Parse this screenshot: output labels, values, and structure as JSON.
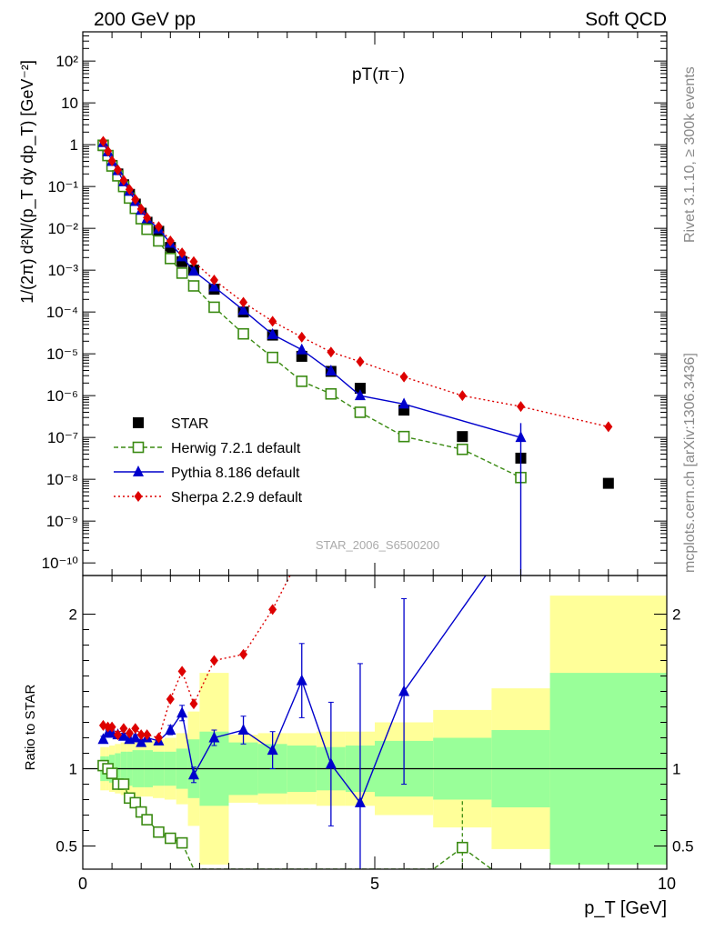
{
  "header": {
    "left": "200 GeV pp",
    "right": "Soft QCD"
  },
  "side_labels": {
    "rivet": "Rivet 3.1.10, ≥ 300k events",
    "mcplots": "mcplots.cern.ch [arXiv:1306.3436]"
  },
  "colors": {
    "star": "#000000",
    "herwig": "#3a8a12",
    "pythia": "#0000cc",
    "sherpa": "#dd0000",
    "band_yellow": "#ffff99",
    "band_green": "#99ff99"
  },
  "chart_data": [
    {
      "type": "scatter",
      "title": "pT(π⁻)",
      "analysis_label": "STAR_2006_S6500200",
      "ylabel": "1/(2π) d²N/(p_T dy dp_T) [GeV⁻²]",
      "ylog": true,
      "xlim": [
        0,
        10
      ],
      "ylim": [
        5e-11,
        500
      ],
      "y_tick_labels": [
        "10⁻¹⁰",
        "10⁻⁹",
        "10⁻⁸",
        "10⁻⁷",
        "10⁻⁶",
        "10⁻⁵",
        "10⁻⁴",
        "10⁻³",
        "10⁻²",
        "10⁻¹",
        "1",
        "10",
        "10²"
      ],
      "legend_position": "lower-left",
      "series": [
        {
          "name": "STAR",
          "style": "square-filled",
          "x": [
            0.35,
            0.43,
            0.5,
            0.6,
            0.7,
            0.8,
            0.9,
            1.0,
            1.1,
            1.3,
            1.5,
            1.7,
            1.9,
            2.25,
            2.75,
            3.25,
            3.75,
            4.25,
            4.75,
            5.5,
            6.5,
            7.5,
            9.0
          ],
          "y": [
            0.95,
            0.55,
            0.32,
            0.2,
            0.11,
            0.065,
            0.038,
            0.023,
            0.014,
            0.0085,
            0.0035,
            0.0016,
            0.001,
            0.00035,
            0.0001,
            2.8e-05,
            8.7e-06,
            3.8e-06,
            1.5e-06,
            4.5e-07,
            1.05e-07,
            3.2e-08,
            8e-09
          ]
        },
        {
          "name": "Herwig 7.2.1 default",
          "style": "square-open-dashed",
          "x": [
            0.35,
            0.43,
            0.5,
            0.6,
            0.7,
            0.8,
            0.9,
            1.0,
            1.1,
            1.3,
            1.5,
            1.7,
            1.9,
            2.25,
            2.75,
            3.25,
            3.75,
            4.25,
            4.75,
            5.5,
            6.5,
            7.5
          ],
          "y": [
            0.97,
            0.55,
            0.31,
            0.18,
            0.1,
            0.053,
            0.03,
            0.017,
            0.0095,
            0.005,
            0.0019,
            0.00085,
            0.00042,
            0.00013,
            3e-05,
            8.2e-06,
            2.2e-06,
            1.1e-06,
            4e-07,
            1.05e-07,
            5.2e-08,
            1.1e-08
          ]
        },
        {
          "name": "Pythia 8.186 default",
          "style": "triangle-solid",
          "x": [
            0.35,
            0.43,
            0.5,
            0.6,
            0.7,
            0.8,
            0.9,
            1.0,
            1.1,
            1.3,
            1.5,
            1.7,
            1.9,
            2.25,
            2.75,
            3.25,
            3.75,
            4.25,
            4.75,
            5.5,
            7.5
          ],
          "y": [
            1.13,
            0.68,
            0.4,
            0.24,
            0.13,
            0.077,
            0.044,
            0.027,
            0.017,
            0.0097,
            0.0044,
            0.0021,
            0.00095,
            0.0004,
            0.00011,
            2.9e-05,
            1.25e-05,
            3.9e-06,
            1e-06,
            6.3e-07,
            1e-07
          ]
        },
        {
          "name": "Sherpa 2.2.9 default",
          "style": "diamond-dotted",
          "x": [
            0.35,
            0.43,
            0.5,
            0.6,
            0.7,
            0.8,
            0.9,
            1.0,
            1.1,
            1.3,
            1.5,
            1.7,
            1.9,
            2.25,
            2.75,
            3.25,
            3.75,
            4.25,
            4.75,
            5.5,
            6.5,
            7.5,
            9.0
          ],
          "y": [
            1.2,
            0.7,
            0.41,
            0.25,
            0.14,
            0.085,
            0.049,
            0.029,
            0.018,
            0.011,
            0.005,
            0.0026,
            0.0016,
            0.00058,
            0.00017,
            6e-05,
            2.5e-05,
            1.1e-05,
            6.5e-06,
            2.8e-06,
            1e-06,
            5.5e-07,
            1.8e-07
          ]
        }
      ]
    },
    {
      "type": "line",
      "ylabel": "Ratio to STAR",
      "xlabel": "p_T [GeV]",
      "xlim": [
        0,
        10
      ],
      "ylim": [
        0.35,
        2.25
      ],
      "x_ticks": [
        0,
        5,
        10
      ],
      "y_ticks": [
        0.5,
        1,
        2
      ],
      "uncertainty_bands": {
        "x_edges": [
          0.3,
          0.4,
          0.45,
          0.55,
          0.65,
          0.75,
          0.85,
          0.95,
          1.05,
          1.2,
          1.4,
          1.6,
          1.8,
          2.0,
          2.5,
          3.0,
          3.5,
          4.0,
          4.5,
          5.0,
          6.0,
          7.0,
          8.0,
          10.0
        ],
        "green_lo": [
          0.92,
          0.92,
          0.91,
          0.9,
          0.89,
          0.89,
          0.88,
          0.88,
          0.88,
          0.89,
          0.89,
          0.87,
          0.81,
          0.76,
          0.83,
          0.84,
          0.85,
          0.86,
          0.85,
          0.82,
          0.8,
          0.75,
          0.38
        ],
        "green_hi": [
          1.08,
          1.08,
          1.09,
          1.1,
          1.11,
          1.11,
          1.12,
          1.12,
          1.12,
          1.11,
          1.11,
          1.13,
          1.19,
          1.24,
          1.17,
          1.16,
          1.15,
          1.14,
          1.15,
          1.18,
          1.2,
          1.25,
          1.62
        ],
        "yellow_lo": [
          0.86,
          0.86,
          0.85,
          0.84,
          0.83,
          0.83,
          0.82,
          0.82,
          0.82,
          0.81,
          0.8,
          0.77,
          0.63,
          0.38,
          0.78,
          0.77,
          0.77,
          0.76,
          0.76,
          0.7,
          0.62,
          0.48,
          0.38
        ],
        "yellow_hi": [
          1.14,
          1.14,
          1.15,
          1.16,
          1.17,
          1.17,
          1.18,
          1.18,
          1.18,
          1.19,
          1.2,
          1.23,
          1.37,
          1.62,
          1.22,
          1.23,
          1.23,
          1.24,
          1.24,
          1.3,
          1.38,
          1.52,
          2.12
        ]
      },
      "series": [
        {
          "name": "Herwig 7.2.1 default",
          "x": [
            0.35,
            0.43,
            0.5,
            0.6,
            0.7,
            0.8,
            0.9,
            1.0,
            1.1,
            1.3,
            1.5,
            1.7,
            1.9,
            6.0,
            6.5,
            7.0
          ],
          "y": [
            1.02,
            1.0,
            0.97,
            0.9,
            0.9,
            0.81,
            0.78,
            0.72,
            0.67,
            0.59,
            0.55,
            0.52,
            0.35,
            0.35,
            0.49,
            0.35
          ],
          "y_err": [
            0,
            0,
            0,
            0,
            0,
            0,
            0,
            0,
            0,
            0,
            0,
            0,
            0,
            0,
            0.3,
            0
          ]
        },
        {
          "name": "Pythia 8.186 default",
          "x": [
            0.35,
            0.43,
            0.5,
            0.6,
            0.7,
            0.8,
            0.9,
            1.0,
            1.1,
            1.3,
            1.5,
            1.7,
            1.9,
            2.25,
            2.75,
            3.25,
            3.75,
            4.25,
            4.75,
            5.5,
            6.9
          ],
          "y": [
            1.19,
            1.23,
            1.23,
            1.22,
            1.21,
            1.19,
            1.2,
            1.17,
            1.2,
            1.18,
            1.25,
            1.36,
            0.96,
            1.2,
            1.25,
            1.12,
            1.57,
            1.03,
            0.78,
            1.5,
            2.25
          ],
          "y_err": [
            0.02,
            0.02,
            0.02,
            0.02,
            0.02,
            0.02,
            0.02,
            0.02,
            0.02,
            0.02,
            0.03,
            0.05,
            0.05,
            0.05,
            0.09,
            0.12,
            0.24,
            0.4,
            0.9,
            0.6,
            0
          ]
        },
        {
          "name": "Sherpa 2.2.9 default",
          "x": [
            0.35,
            0.43,
            0.5,
            0.6,
            0.7,
            0.8,
            0.9,
            1.0,
            1.1,
            1.3,
            1.5,
            1.7,
            1.9,
            2.25,
            2.75,
            3.25,
            3.55
          ],
          "y": [
            1.28,
            1.27,
            1.27,
            1.22,
            1.26,
            1.23,
            1.26,
            1.22,
            1.22,
            1.2,
            1.45,
            1.63,
            1.42,
            1.7,
            1.74,
            2.03,
            2.25
          ],
          "y_err": [
            0,
            0,
            0,
            0,
            0,
            0,
            0,
            0,
            0,
            0,
            0,
            0,
            0,
            0,
            0,
            0,
            0
          ]
        }
      ]
    }
  ]
}
